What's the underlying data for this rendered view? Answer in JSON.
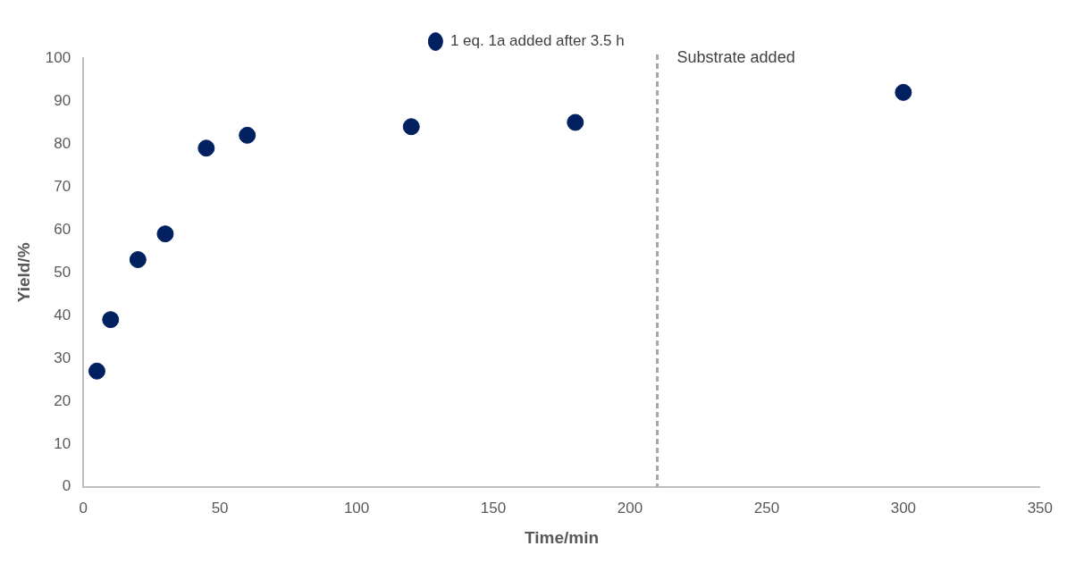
{
  "chart_data": {
    "type": "scatter",
    "xlabel": "Time/min",
    "ylabel": "Yield/%",
    "x": [
      5,
      10,
      20,
      30,
      45,
      60,
      120,
      180,
      300
    ],
    "series": [
      {
        "name": "1 eq. 1a added after 3.5 h",
        "color": "#002060",
        "values": [
          27,
          39,
          53,
          59,
          79,
          82,
          84,
          85,
          92
        ]
      }
    ],
    "xlim": [
      0,
      350
    ],
    "xticks": [
      0,
      50,
      100,
      150,
      200,
      250,
      300,
      350
    ],
    "ylim": [
      0,
      100
    ],
    "yticks": [
      0,
      10,
      20,
      30,
      40,
      50,
      60,
      70,
      80,
      90,
      100
    ],
    "ref_lines": [
      {
        "axis": "x",
        "value": 210,
        "label": "Substrate added",
        "color": "#a6a6a6",
        "line_style": "dashed"
      }
    ],
    "grid": false,
    "legend": "top",
    "marker": "circle"
  }
}
